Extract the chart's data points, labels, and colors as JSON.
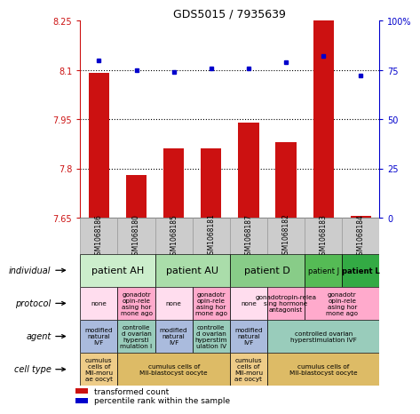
{
  "title": "GDS5015 / 7935639",
  "samples": [
    "GSM1068186",
    "GSM1068180",
    "GSM1068185",
    "GSM1068181",
    "GSM1068187",
    "GSM1068182",
    "GSM1068183",
    "GSM1068184"
  ],
  "transformed_count": [
    8.09,
    7.78,
    7.86,
    7.86,
    7.94,
    7.88,
    8.25,
    7.655
  ],
  "percentile_rank": [
    80,
    75,
    74,
    76,
    76,
    79,
    82,
    72
  ],
  "ylim_left": [
    7.65,
    8.25
  ],
  "ylim_right": [
    0,
    100
  ],
  "yticks_left": [
    7.65,
    7.8,
    7.95,
    8.1,
    8.25
  ],
  "yticks_right": [
    0,
    25,
    50,
    75,
    100
  ],
  "hlines": [
    7.8,
    7.95,
    8.1
  ],
  "bar_color": "#cc1111",
  "dot_color": "#0000cc",
  "bar_baseline": 7.65,
  "individual_groups": [
    {
      "label": "patient AH",
      "cols": [
        0,
        1
      ],
      "color": "#cceecc"
    },
    {
      "label": "patient AU",
      "cols": [
        2,
        3
      ],
      "color": "#aaddaa"
    },
    {
      "label": "patient D",
      "cols": [
        4,
        5
      ],
      "color": "#88cc88"
    },
    {
      "label": "patient J",
      "cols": [
        6
      ],
      "color": "#55bb55"
    },
    {
      "label": "patient L",
      "cols": [
        7
      ],
      "color": "#33aa44"
    }
  ],
  "protocol_data": [
    {
      "cols": [
        0
      ],
      "label": "modified\nnatural\nIVF",
      "color": "#aabbdd"
    },
    {
      "cols": [
        1
      ],
      "label": "controlle\nd ovarian\nhypersti\nmulation I",
      "color": "#99ccbb"
    },
    {
      "cols": [
        2
      ],
      "label": "modified\nnatural\nIVF",
      "color": "#aabbdd"
    },
    {
      "cols": [
        3
      ],
      "label": "controlle\nd ovarian\nhyperstim\nulation IV",
      "color": "#99ccbb"
    },
    {
      "cols": [
        4
      ],
      "label": "modified\nnatural\nIVF",
      "color": "#aabbdd"
    },
    {
      "cols": [
        5,
        6,
        7
      ],
      "label": "controlled ovarian\nhyperstimulation IVF",
      "color": "#99ccbb"
    }
  ],
  "agent_data": [
    {
      "cols": [
        0
      ],
      "label": "none",
      "color": "#ffddee"
    },
    {
      "cols": [
        1
      ],
      "label": "gonadotr\nopin-rele\nasing hor\nmone ago",
      "color": "#ffaacc"
    },
    {
      "cols": [
        2
      ],
      "label": "none",
      "color": "#ffddee"
    },
    {
      "cols": [
        3
      ],
      "label": "gonadotr\nopin-rele\nasing hor\nmone ago",
      "color": "#ffaacc"
    },
    {
      "cols": [
        4
      ],
      "label": "none",
      "color": "#ffddee"
    },
    {
      "cols": [
        5
      ],
      "label": "gonadotropin-relea\nsing hormone\nantagonist",
      "color": "#ffaacc"
    },
    {
      "cols": [
        6,
        7
      ],
      "label": "gonadotr\nopin-rele\nasing hor\nmone ago",
      "color": "#ffaacc"
    }
  ],
  "celltype_data": [
    {
      "cols": [
        0
      ],
      "label": "cumulus\ncells of\nMII-moru\nae oocyt",
      "color": "#eecc88"
    },
    {
      "cols": [
        1,
        2,
        3
      ],
      "label": "cumulus cells of\nMII-blastocyst oocyte",
      "color": "#ddbb66"
    },
    {
      "cols": [
        4
      ],
      "label": "cumulus\ncells of\nMII-moru\nae oocyt",
      "color": "#eecc88"
    },
    {
      "cols": [
        5,
        6,
        7
      ],
      "label": "cumulus cells of\nMII-blastocyst oocyte",
      "color": "#ddbb66"
    }
  ],
  "row_labels": [
    "individual",
    "protocol",
    "agent",
    "cell type"
  ],
  "sample_box_color": "#cccccc",
  "sample_box_edge": "#999999"
}
